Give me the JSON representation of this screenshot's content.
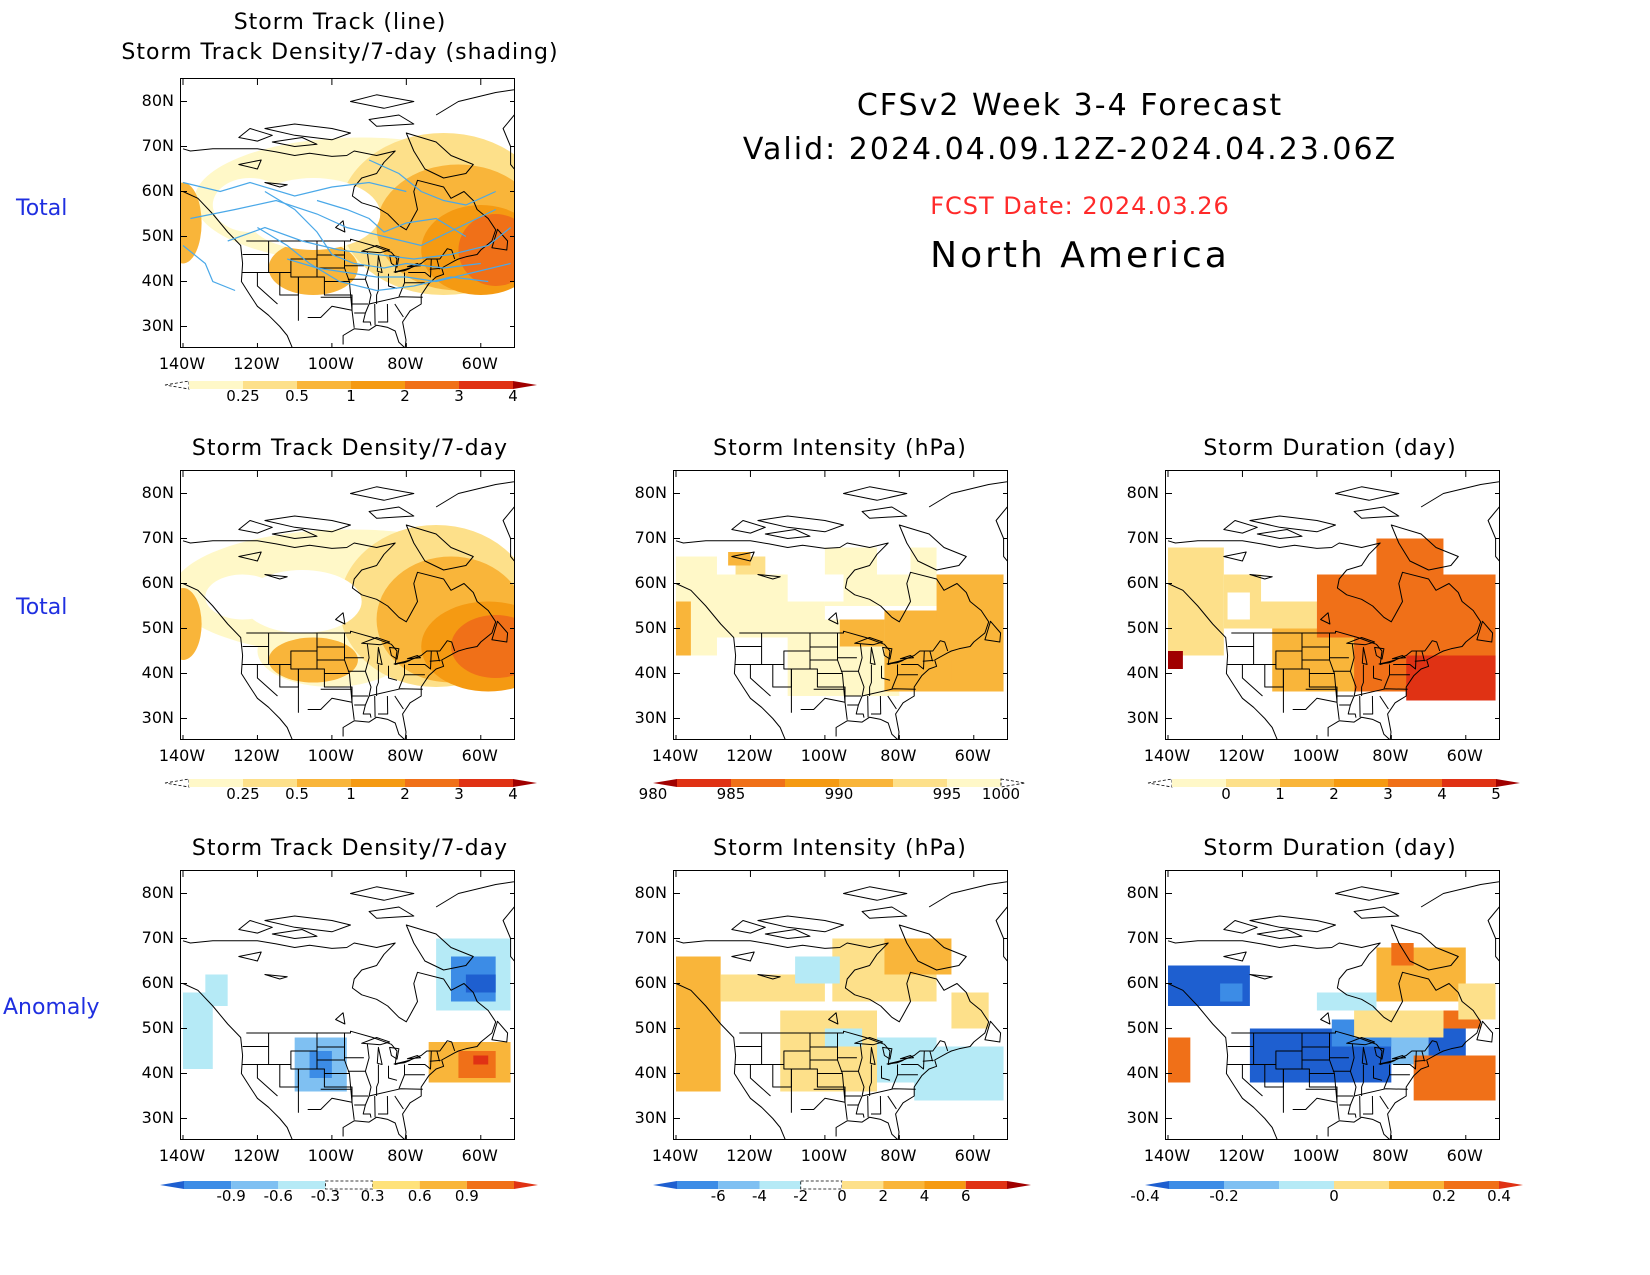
{
  "header": {
    "line1": "CFSv2  Week  3-4  Forecast",
    "line2": "Valid:  2024.04.09.12Z-2024.04.23.06Z",
    "fcst": "FCST Date: 2024.03.26",
    "region": "North  America",
    "fcst_color": "#ff2a2a"
  },
  "row_labels": {
    "row1": "Total",
    "row2": "Total",
    "row3": "Anomaly"
  },
  "axes": {
    "lat_labels": [
      "80N",
      "70N",
      "60N",
      "50N",
      "40N",
      "30N"
    ],
    "lon_labels": [
      "140W",
      "120W",
      "100W",
      "80W",
      "60W"
    ]
  },
  "panels": {
    "p1": {
      "title1": "Storm Track (line)",
      "title2": "Storm Track Density/7-day (shading)",
      "scheme": "density_total"
    },
    "p2": {
      "title": "Storm Track Density/7-day",
      "scheme": "density_total"
    },
    "p3": {
      "title": "Storm Intensity (hPa)",
      "scheme": "intensity_total"
    },
    "p4": {
      "title": "Storm Duration (day)",
      "scheme": "duration_total"
    },
    "p5": {
      "title": "Storm Track Density/7-day",
      "scheme": "density_anom"
    },
    "p6": {
      "title": "Storm Intensity (hPa)",
      "scheme": "intensity_anom"
    },
    "p7": {
      "title": "Storm Duration (day)",
      "scheme": "duration_anom"
    }
  },
  "colorbars": {
    "density_total": {
      "labels": [
        "0.25",
        "0.5",
        "1",
        "2",
        "3",
        "4"
      ],
      "colors": [
        "#ffffff",
        "#fff8c8",
        "#fde08a",
        "#f9b53a",
        "#f59a12",
        "#f07018",
        "#e03214",
        "#a00000"
      ]
    },
    "intensity_total": {
      "labels": [
        "980",
        "985",
        "990",
        "995",
        "1000"
      ],
      "colors": [
        "#a00000",
        "#e03214",
        "#f07018",
        "#f59a12",
        "#f9b53a",
        "#fde08a",
        "#fff8c8",
        "#ffffff"
      ]
    },
    "duration_total": {
      "labels": [
        "0",
        "1",
        "2",
        "3",
        "4",
        "5"
      ],
      "colors": [
        "#ffffff",
        "#fff8c8",
        "#fde08a",
        "#f9b53a",
        "#f59a12",
        "#f07018",
        "#e03214",
        "#a00000"
      ]
    },
    "density_anom": {
      "labels": [
        "-0.9",
        "-0.6",
        "-0.3",
        "0.3",
        "0.6",
        "0.9"
      ],
      "colors": [
        "#1e5fd0",
        "#3c8ce6",
        "#7fc0f2",
        "#b5eaf6",
        "#ffffff",
        "#ffe27a",
        "#f9b53a",
        "#f07018",
        "#e03214"
      ]
    },
    "intensity_anom": {
      "labels": [
        "-6",
        "-4",
        "-2",
        "0",
        "2",
        "4",
        "6"
      ],
      "colors": [
        "#1e5fd0",
        "#3c8ce6",
        "#7fc0f2",
        "#b5eaf6",
        "#ffffff",
        "#fde08a",
        "#f9b53a",
        "#f59a12",
        "#e03214",
        "#a00000"
      ]
    },
    "duration_anom": {
      "labels": [
        "-0.4",
        "-0.2",
        "0",
        "0.2",
        "0.4"
      ],
      "colors": [
        "#1e5fd0",
        "#3c8ce6",
        "#7fc0f2",
        "#b5eaf6",
        "#fde08a",
        "#f9b53a",
        "#f07018",
        "#e03214"
      ]
    }
  },
  "colors": {
    "track_line": "#4aa8e8",
    "row_label": "#1f2fe0"
  }
}
